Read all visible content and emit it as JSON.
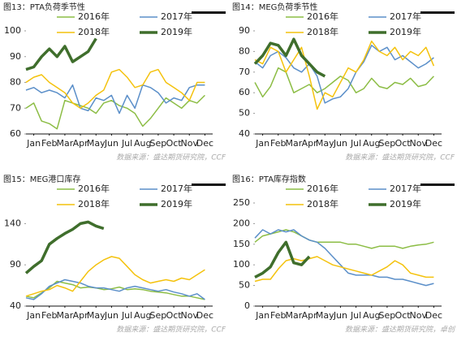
{
  "chart_data": [
    {
      "type": "line",
      "title": "图13：PTA负荷季节性",
      "source": "数据来源：盛达期货研究院，CCF",
      "x": [
        0,
        0.5,
        1,
        1.5,
        2,
        2.5,
        3,
        3.5,
        4,
        4.5,
        5,
        5.5,
        6,
        6.5,
        7,
        7.5,
        8,
        8.5,
        9,
        9.5,
        10,
        10.5,
        11,
        11.5
      ],
      "xlim": [
        0,
        12
      ],
      "xticks": [
        {
          "value": 0.5,
          "label": "Jan"
        },
        {
          "value": 1.5,
          "label": "Feb"
        },
        {
          "value": 2.5,
          "label": "Mar"
        },
        {
          "value": 3.5,
          "label": "Apr"
        },
        {
          "value": 4.5,
          "label": "May"
        },
        {
          "value": 5.5,
          "label": "Jun"
        },
        {
          "value": 6.5,
          "label": "Jul"
        },
        {
          "value": 7.5,
          "label": "Aug"
        },
        {
          "value": 8.5,
          "label": "Sep"
        },
        {
          "value": 9.5,
          "label": "Oct"
        },
        {
          "value": 10.5,
          "label": "Nov"
        },
        {
          "value": 11.5,
          "label": "Dec"
        }
      ],
      "ylim": [
        60,
        100
      ],
      "yticks": [
        60,
        70,
        80,
        90,
        100
      ],
      "series": [
        {
          "name": "2016年",
          "color": "#8cbd45",
          "values": [
            70,
            72,
            65,
            64,
            62,
            73,
            72,
            71,
            70,
            68,
            72,
            73,
            71,
            70,
            68,
            63,
            66,
            70,
            74,
            72,
            70,
            73,
            72,
            75
          ]
        },
        {
          "name": "2017年",
          "color": "#5b8fc9",
          "values": [
            77,
            78,
            76,
            77,
            76,
            74,
            79,
            70,
            69,
            74,
            73,
            75,
            68,
            75,
            70,
            79,
            78,
            76,
            72,
            74,
            73,
            78,
            79,
            79
          ]
        },
        {
          "name": "2018年",
          "color": "#f4c20d",
          "values": [
            80,
            82,
            83,
            80,
            78,
            76,
            72,
            70,
            72,
            75,
            77,
            84,
            85,
            82,
            78,
            79,
            84,
            85,
            80,
            78,
            76,
            73,
            80,
            80
          ]
        },
        {
          "name": "2019年",
          "color": "#3f6e2c",
          "values": [
            85,
            86,
            90,
            93,
            90,
            94,
            88,
            90,
            92,
            97,
            null,
            null,
            null,
            null,
            null,
            null,
            null,
            null,
            null,
            null,
            null,
            null,
            null,
            null
          ]
        }
      ]
    },
    {
      "type": "line",
      "title": "图14：MEG负荷季节性",
      "source": "数据来源：盛达期货研究院，CCF",
      "x": [
        0,
        0.5,
        1,
        1.5,
        2,
        2.5,
        3,
        3.5,
        4,
        4.5,
        5,
        5.5,
        6,
        6.5,
        7,
        7.5,
        8,
        8.5,
        9,
        9.5,
        10,
        10.5,
        11,
        11.5
      ],
      "xlim": [
        0,
        12
      ],
      "xticks": [
        {
          "value": 0.5,
          "label": "Jan"
        },
        {
          "value": 1.5,
          "label": "Feb"
        },
        {
          "value": 2.5,
          "label": "Mar"
        },
        {
          "value": 3.5,
          "label": "Apr"
        },
        {
          "value": 4.5,
          "label": "May"
        },
        {
          "value": 5.5,
          "label": "Jun"
        },
        {
          "value": 6.5,
          "label": "Jul"
        },
        {
          "value": 7.5,
          "label": "Aug"
        },
        {
          "value": 8.5,
          "label": "Sep"
        },
        {
          "value": 9.5,
          "label": "Oct"
        },
        {
          "value": 10.5,
          "label": "Nov"
        },
        {
          "value": 11.5,
          "label": "Dec"
        }
      ],
      "ylim": [
        40,
        90
      ],
      "yticks": [
        40,
        50,
        60,
        70,
        80,
        90
      ],
      "series": [
        {
          "name": "2016年",
          "color": "#8cbd45",
          "values": [
            65,
            58,
            63,
            72,
            70,
            60,
            62,
            64,
            60,
            62,
            65,
            68,
            66,
            60,
            62,
            67,
            63,
            62,
            65,
            64,
            67,
            63,
            64,
            68
          ]
        },
        {
          "name": "2017年",
          "color": "#5b8fc9",
          "values": [
            75,
            72,
            78,
            80,
            77,
            72,
            70,
            74,
            68,
            55,
            57,
            58,
            62,
            70,
            75,
            83,
            80,
            82,
            76,
            78,
            75,
            72,
            74,
            77
          ]
        },
        {
          "name": "2018年",
          "color": "#f4c20d",
          "values": [
            76,
            74,
            82,
            80,
            70,
            76,
            82,
            68,
            52,
            60,
            58,
            65,
            72,
            70,
            76,
            85,
            80,
            78,
            82,
            76,
            80,
            78,
            82,
            73
          ]
        },
        {
          "name": "2019年",
          "color": "#3f6e2c",
          "values": [
            74,
            78,
            84,
            83,
            78,
            86,
            78,
            74,
            70,
            68,
            null,
            null,
            null,
            null,
            null,
            null,
            null,
            null,
            null,
            null,
            null,
            null,
            null,
            null
          ]
        }
      ]
    },
    {
      "type": "line",
      "title": "图15：MEG港口库存",
      "source": "数据来源：盛达期货研究院，CCF",
      "x": [
        0,
        0.5,
        1,
        1.5,
        2,
        2.5,
        3,
        3.5,
        4,
        4.5,
        5,
        5.5,
        6,
        6.5,
        7,
        7.5,
        8,
        8.5,
        9,
        9.5,
        10,
        10.5,
        11,
        11.5
      ],
      "xlim": [
        0,
        12
      ],
      "xticks": [
        {
          "value": 0.5,
          "label": "Jan"
        },
        {
          "value": 1.5,
          "label": "Feb"
        },
        {
          "value": 2.5,
          "label": "Mar"
        },
        {
          "value": 3.5,
          "label": "Apr"
        },
        {
          "value": 4.5,
          "label": "May"
        },
        {
          "value": 5.5,
          "label": "Jun"
        },
        {
          "value": 6.5,
          "label": "Jul"
        },
        {
          "value": 7.5,
          "label": "Aug"
        },
        {
          "value": 8.5,
          "label": "Sep"
        },
        {
          "value": 9.5,
          "label": "Oct"
        },
        {
          "value": 10.5,
          "label": "Nov"
        },
        {
          "value": 11.5,
          "label": "Dec"
        }
      ],
      "ylim": [
        40,
        165
      ],
      "yticks": [
        40,
        90,
        140
      ],
      "series": [
        {
          "name": "2016年",
          "color": "#8cbd45",
          "values": [
            52,
            50,
            56,
            62,
            70,
            68,
            66,
            62,
            63,
            62,
            60,
            61,
            63,
            60,
            61,
            60,
            58,
            57,
            56,
            54,
            52,
            52,
            50,
            48
          ]
        },
        {
          "name": "2017年",
          "color": "#5b8fc9",
          "values": [
            50,
            48,
            55,
            64,
            68,
            72,
            70,
            68,
            64,
            62,
            62,
            60,
            58,
            62,
            64,
            62,
            60,
            58,
            60,
            57,
            55,
            52,
            55,
            48
          ]
        },
        {
          "name": "2018年",
          "color": "#f4c20d",
          "values": [
            52,
            55,
            58,
            60,
            65,
            62,
            58,
            70,
            82,
            90,
            96,
            100,
            98,
            88,
            78,
            72,
            68,
            70,
            72,
            70,
            74,
            72,
            78,
            84
          ]
        },
        {
          "name": "2019年",
          "color": "#3f6e2c",
          "values": [
            80,
            88,
            95,
            115,
            122,
            128,
            133,
            140,
            142,
            137,
            134,
            null,
            null,
            null,
            null,
            null,
            null,
            null,
            null,
            null,
            null,
            null,
            null,
            null
          ]
        }
      ]
    },
    {
      "type": "line",
      "title": "图16：PTA库存指数",
      "source": "数据来源：盛达期货研究院，卓创",
      "x": [
        0,
        0.5,
        1,
        1.5,
        2,
        2.5,
        3,
        3.5,
        4,
        4.5,
        5,
        5.5,
        6,
        6.5,
        7,
        7.5,
        8,
        8.5,
        9,
        9.5,
        10,
        10.5,
        11,
        11.5
      ],
      "xlim": [
        0,
        12
      ],
      "xticks": [
        {
          "value": 0.5,
          "label": "Jan"
        },
        {
          "value": 1.5,
          "label": "Feb"
        },
        {
          "value": 2.5,
          "label": "Mar"
        },
        {
          "value": 3.5,
          "label": "Apr"
        },
        {
          "value": 4.5,
          "label": "May"
        },
        {
          "value": 5.5,
          "label": "Jun"
        },
        {
          "value": 6.5,
          "label": "Jul"
        },
        {
          "value": 7.5,
          "label": "Aug"
        },
        {
          "value": 8.5,
          "label": "Sep"
        },
        {
          "value": 9.5,
          "label": "Oct"
        },
        {
          "value": 10.5,
          "label": "Nov"
        },
        {
          "value": 11.5,
          "label": "Dec"
        }
      ],
      "ylim": [
        0,
        250
      ],
      "yticks": [
        0,
        50,
        100,
        150,
        200,
        250
      ],
      "series": [
        {
          "name": "2016年",
          "color": "#8cbd45",
          "values": [
            155,
            170,
            175,
            180,
            185,
            180,
            170,
            160,
            155,
            155,
            155,
            155,
            150,
            150,
            145,
            140,
            145,
            145,
            145,
            140,
            145,
            148,
            150,
            155
          ]
        },
        {
          "name": "2017年",
          "color": "#5b8fc9",
          "values": [
            165,
            185,
            175,
            185,
            180,
            185,
            170,
            160,
            155,
            140,
            120,
            100,
            80,
            75,
            75,
            75,
            70,
            70,
            65,
            65,
            60,
            55,
            50,
            55
          ]
        },
        {
          "name": "2018年",
          "color": "#f4c20d",
          "values": [
            60,
            65,
            65,
            90,
            110,
            115,
            110,
            115,
            120,
            110,
            100,
            95,
            90,
            85,
            80,
            75,
            85,
            95,
            110,
            100,
            80,
            75,
            70,
            70
          ]
        },
        {
          "name": "2019年",
          "color": "#3f6e2c",
          "values": [
            70,
            80,
            95,
            130,
            155,
            105,
            100,
            120,
            null,
            null,
            null,
            null,
            null,
            null,
            null,
            null,
            null,
            null,
            null,
            null,
            null,
            null,
            null,
            null
          ]
        }
      ]
    }
  ]
}
